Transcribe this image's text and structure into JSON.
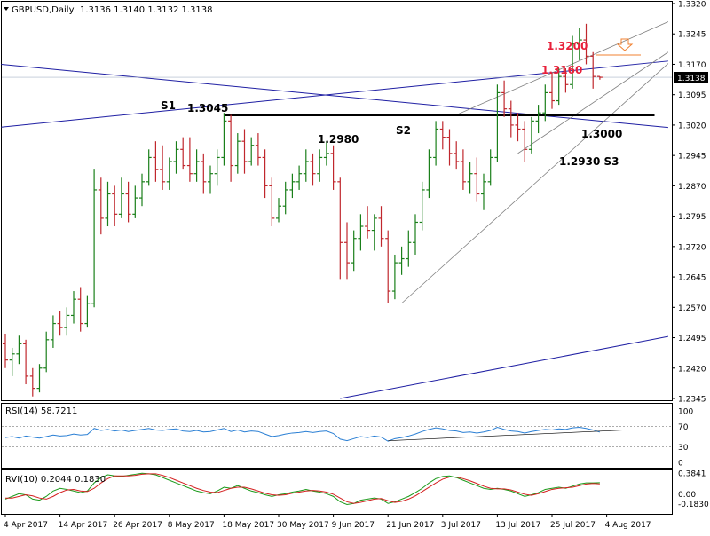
{
  "header": {
    "symbol": "GBPUSD,Daily",
    "ohlc": "1.3136 1.3140 1.3132 1.3138"
  },
  "chart_data": [
    {
      "type": "candlestick",
      "name": "GBPUSD,Daily",
      "ylim": [
        1.2345,
        1.332
      ],
      "y_ticks": [
        "1.3320",
        "1.3245",
        "1.3170",
        "1.3095",
        "1.3020",
        "1.2945",
        "1.2870",
        "1.2795",
        "1.2720",
        "1.2645",
        "1.2570",
        "1.2495",
        "1.2420",
        "1.2345"
      ],
      "current_price": "1.3138",
      "x_ticks": [
        "4 Apr 2017",
        "14 Apr 2017",
        "26 Apr 2017",
        "8 May 2017",
        "18 May 2017",
        "30 May 2017",
        "9 Jun 2017",
        "21 Jun 2017",
        "3 Jul 2017",
        "13 Jul 2017",
        "25 Jul 2017",
        "4 Aug 2017"
      ],
      "x_tick_index": [
        0,
        8,
        16,
        24,
        32,
        40,
        48,
        56,
        64,
        72,
        80,
        88
      ],
      "bars": [
        [
          1.248,
          1.2505,
          1.242,
          1.244
        ],
        [
          1.244,
          1.247,
          1.24,
          1.2455
        ],
        [
          1.2455,
          1.25,
          1.243,
          1.248
        ],
        [
          1.248,
          1.249,
          1.238,
          1.24
        ],
        [
          1.24,
          1.242,
          1.235,
          1.237
        ],
        [
          1.237,
          1.243,
          1.236,
          1.242
        ],
        [
          1.242,
          1.251,
          1.241,
          1.249
        ],
        [
          1.249,
          1.255,
          1.247,
          1.253
        ],
        [
          1.253,
          1.256,
          1.25,
          1.252
        ],
        [
          1.252,
          1.257,
          1.25,
          1.255
        ],
        [
          1.255,
          1.261,
          1.253,
          1.259
        ],
        [
          1.259,
          1.262,
          1.251,
          1.253
        ],
        [
          1.253,
          1.26,
          1.252,
          1.258
        ],
        [
          1.258,
          1.291,
          1.257,
          1.286
        ],
        [
          1.286,
          1.289,
          1.275,
          1.279
        ],
        [
          1.279,
          1.288,
          1.277,
          1.285
        ],
        [
          1.285,
          1.287,
          1.277,
          1.28
        ],
        [
          1.28,
          1.289,
          1.279,
          1.285
        ],
        [
          1.285,
          1.288,
          1.278,
          1.28
        ],
        [
          1.28,
          1.287,
          1.279,
          1.284
        ],
        [
          1.284,
          1.29,
          1.282,
          1.288
        ],
        [
          1.288,
          1.296,
          1.287,
          1.294
        ],
        [
          1.294,
          1.298,
          1.288,
          1.291
        ],
        [
          1.291,
          1.297,
          1.286,
          1.288
        ],
        [
          1.288,
          1.294,
          1.286,
          1.293
        ],
        [
          1.293,
          1.298,
          1.29,
          1.296
        ],
        [
          1.296,
          1.299,
          1.291,
          1.292
        ],
        [
          1.292,
          1.299,
          1.288,
          1.29
        ],
        [
          1.29,
          1.296,
          1.288,
          1.293
        ],
        [
          1.293,
          1.295,
          1.285,
          1.288
        ],
        [
          1.288,
          1.292,
          1.285,
          1.29
        ],
        [
          1.29,
          1.296,
          1.287,
          1.294
        ],
        [
          1.294,
          1.305,
          1.292,
          1.303
        ],
        [
          1.303,
          1.3045,
          1.288,
          1.292
        ],
        [
          1.292,
          1.3,
          1.29,
          1.298
        ],
        [
          1.298,
          1.301,
          1.29,
          1.293
        ],
        [
          1.293,
          1.299,
          1.292,
          1.297
        ],
        [
          1.297,
          1.3,
          1.292,
          1.294
        ],
        [
          1.294,
          1.296,
          1.284,
          1.287
        ],
        [
          1.287,
          1.289,
          1.277,
          1.279
        ],
        [
          1.279,
          1.284,
          1.278,
          1.282
        ],
        [
          1.282,
          1.288,
          1.28,
          1.286
        ],
        [
          1.286,
          1.29,
          1.284,
          1.288
        ],
        [
          1.288,
          1.292,
          1.286,
          1.29
        ],
        [
          1.29,
          1.296,
          1.288,
          1.293
        ],
        [
          1.293,
          1.295,
          1.287,
          1.29
        ],
        [
          1.29,
          1.296,
          1.288,
          1.294
        ],
        [
          1.294,
          1.298,
          1.292,
          1.295
        ],
        [
          1.295,
          1.297,
          1.286,
          1.288
        ],
        [
          1.288,
          1.289,
          1.264,
          1.273
        ],
        [
          1.273,
          1.278,
          1.264,
          1.268
        ],
        [
          1.268,
          1.276,
          1.266,
          1.274
        ],
        [
          1.274,
          1.28,
          1.271,
          1.277
        ],
        [
          1.277,
          1.282,
          1.274,
          1.276
        ],
        [
          1.276,
          1.28,
          1.271,
          1.279
        ],
        [
          1.279,
          1.282,
          1.272,
          1.274
        ],
        [
          1.274,
          1.276,
          1.258,
          1.261
        ],
        [
          1.261,
          1.27,
          1.259,
          1.268
        ],
        [
          1.268,
          1.272,
          1.265,
          1.269
        ],
        [
          1.269,
          1.276,
          1.267,
          1.273
        ],
        [
          1.273,
          1.28,
          1.27,
          1.278
        ],
        [
          1.278,
          1.288,
          1.276,
          1.286
        ],
        [
          1.286,
          1.296,
          1.284,
          1.294
        ],
        [
          1.294,
          1.303,
          1.292,
          1.301
        ],
        [
          1.301,
          1.303,
          1.296,
          1.299
        ],
        [
          1.299,
          1.301,
          1.292,
          1.295
        ],
        [
          1.295,
          1.298,
          1.291,
          1.293
        ],
        [
          1.293,
          1.296,
          1.286,
          1.288
        ],
        [
          1.288,
          1.293,
          1.285,
          1.29
        ],
        [
          1.29,
          1.294,
          1.283,
          1.285
        ],
        [
          1.285,
          1.29,
          1.281,
          1.288
        ],
        [
          1.288,
          1.296,
          1.287,
          1.294
        ],
        [
          1.294,
          1.312,
          1.293,
          1.31
        ],
        [
          1.31,
          1.313,
          1.304,
          1.306
        ],
        [
          1.306,
          1.308,
          1.299,
          1.302
        ],
        [
          1.302,
          1.305,
          1.298,
          1.301
        ],
        [
          1.301,
          1.303,
          1.293,
          1.296
        ],
        [
          1.296,
          1.304,
          1.295,
          1.303
        ],
        [
          1.303,
          1.307,
          1.3,
          1.305
        ],
        [
          1.305,
          1.312,
          1.303,
          1.31
        ],
        [
          1.31,
          1.315,
          1.306,
          1.308
        ],
        [
          1.308,
          1.316,
          1.307,
          1.314
        ],
        [
          1.314,
          1.316,
          1.31,
          1.312
        ],
        [
          1.312,
          1.324,
          1.311,
          1.322
        ],
        [
          1.322,
          1.326,
          1.318,
          1.323
        ],
        [
          1.323,
          1.327,
          1.317,
          1.319
        ],
        [
          1.319,
          1.32,
          1.311,
          1.314
        ],
        [
          1.314,
          1.314,
          1.3132,
          1.3138
        ]
      ],
      "annotations": [
        {
          "text": "S1",
          "color": "#000000"
        },
        {
          "text": "1.3045",
          "color": "#000000"
        },
        {
          "text": "1.2980",
          "color": "#000000"
        },
        {
          "text": "S2",
          "color": "#000000"
        },
        {
          "text": "1.3000",
          "color": "#000000"
        },
        {
          "text": "1.2930 S3",
          "color": "#000000"
        },
        {
          "text": "1.3200",
          "color": "#e8203a"
        },
        {
          "text": "1.3160",
          "color": "#e8203a"
        }
      ],
      "level_line": {
        "price": 1.3045,
        "from_index": 32,
        "to_index": 91
      },
      "colors": {
        "up": "#1a7f1a",
        "down": "#c0272d",
        "trend": "#1f1fa3",
        "channel": "#808080",
        "support": "#000000"
      }
    },
    {
      "type": "line",
      "name": "RSI(14) 58.7211",
      "ylim": [
        0,
        100
      ],
      "y_ticks": [
        "100",
        "70",
        "30",
        "0"
      ],
      "levels": [
        70,
        30
      ],
      "values": [
        48,
        50,
        47,
        51,
        49,
        47,
        50,
        53,
        51,
        52,
        55,
        53,
        54,
        66,
        62,
        64,
        61,
        63,
        60,
        62,
        64,
        66,
        63,
        62,
        64,
        65,
        61,
        60,
        62,
        59,
        60,
        63,
        66,
        60,
        63,
        59,
        61,
        60,
        55,
        50,
        52,
        55,
        57,
        58,
        60,
        58,
        60,
        61,
        56,
        45,
        42,
        46,
        50,
        48,
        51,
        49,
        41,
        46,
        48,
        51,
        55,
        60,
        64,
        67,
        65,
        62,
        61,
        58,
        59,
        57,
        59,
        62,
        68,
        64,
        61,
        60,
        57,
        60,
        62,
        64,
        63,
        65,
        64,
        67,
        68,
        66,
        63,
        58.72
      ],
      "color": "#2a7fd4"
    },
    {
      "type": "line",
      "name": "RVI(10) 0.2044 0.1830",
      "ylim": [
        -0.34,
        0.4
      ],
      "y_ticks": [
        "0.3841",
        "0.00",
        "-0.1830"
      ],
      "series": [
        {
          "values": [
            -0.1,
            -0.05,
            0.0,
            -0.02,
            -0.1,
            -0.12,
            -0.05,
            0.05,
            0.1,
            0.08,
            0.05,
            0.02,
            0.05,
            0.2,
            0.3,
            0.35,
            0.33,
            0.32,
            0.34,
            0.36,
            0.38,
            0.37,
            0.35,
            0.3,
            0.25,
            0.2,
            0.15,
            0.1,
            0.05,
            0.02,
            0.0,
            0.05,
            0.12,
            0.1,
            0.15,
            0.1,
            0.05,
            0.02,
            -0.02,
            -0.05,
            -0.02,
            0.0,
            0.03,
            0.05,
            0.08,
            0.05,
            0.03,
            0.0,
            -0.05,
            -0.15,
            -0.2,
            -0.18,
            -0.12,
            -0.1,
            -0.08,
            -0.1,
            -0.18,
            -0.15,
            -0.1,
            -0.05,
            0.02,
            0.1,
            0.2,
            0.28,
            0.32,
            0.33,
            0.3,
            0.25,
            0.2,
            0.15,
            0.1,
            0.08,
            0.1,
            0.08,
            0.05,
            0.0,
            -0.05,
            -0.02,
            0.02,
            0.08,
            0.1,
            0.12,
            0.1,
            0.14,
            0.18,
            0.2,
            0.2,
            0.2044
          ],
          "color": "#1a9a1a"
        },
        {
          "values": [
            -0.08,
            -0.08,
            -0.05,
            -0.02,
            -0.04,
            -0.08,
            -0.1,
            -0.05,
            0.02,
            0.07,
            0.08,
            0.05,
            0.04,
            0.1,
            0.2,
            0.28,
            0.33,
            0.33,
            0.33,
            0.34,
            0.36,
            0.37,
            0.37,
            0.34,
            0.3,
            0.25,
            0.2,
            0.15,
            0.1,
            0.06,
            0.03,
            0.02,
            0.06,
            0.1,
            0.12,
            0.12,
            0.09,
            0.05,
            0.01,
            -0.02,
            -0.03,
            -0.02,
            0.01,
            0.03,
            0.05,
            0.06,
            0.05,
            0.03,
            -0.01,
            -0.08,
            -0.15,
            -0.18,
            -0.16,
            -0.13,
            -0.1,
            -0.09,
            -0.13,
            -0.16,
            -0.14,
            -0.1,
            -0.04,
            0.04,
            0.12,
            0.2,
            0.27,
            0.31,
            0.31,
            0.28,
            0.24,
            0.19,
            0.14,
            0.1,
            0.09,
            0.09,
            0.07,
            0.03,
            -0.01,
            -0.03,
            0.0,
            0.04,
            0.08,
            0.1,
            0.11,
            0.12,
            0.15,
            0.18,
            0.19,
            0.183
          ],
          "color": "#d42020"
        }
      ]
    }
  ]
}
